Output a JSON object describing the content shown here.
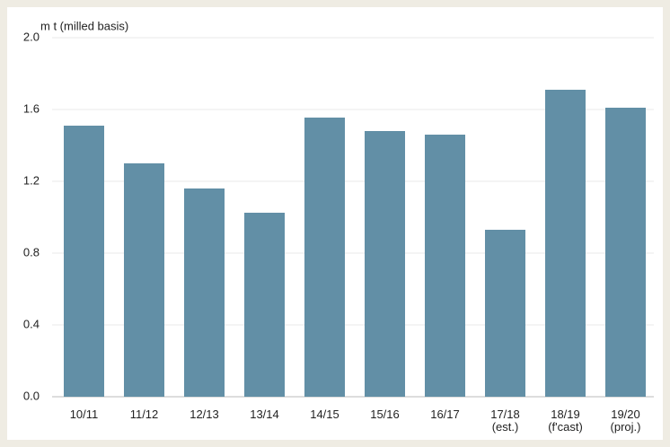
{
  "chart_data": {
    "type": "bar",
    "y_axis_label": "m t (milled basis)",
    "categories": [
      "10/11",
      "11/12",
      "12/13",
      "13/14",
      "14/15",
      "15/16",
      "16/17",
      "17/18\n(est.)",
      "18/19\n(f'cast)",
      "19/20\n(proj.)"
    ],
    "values": [
      1.51,
      1.3,
      1.16,
      1.025,
      1.555,
      1.48,
      1.46,
      0.93,
      1.71,
      1.61
    ],
    "color": "#628fa6",
    "ylim": [
      0,
      2
    ],
    "yticks": [
      {
        "value": 0,
        "label": "0.0"
      },
      0.4,
      0.8,
      1.2,
      1.6,
      {
        "value": 2,
        "label": "2.0"
      }
    ],
    "grid": true
  }
}
